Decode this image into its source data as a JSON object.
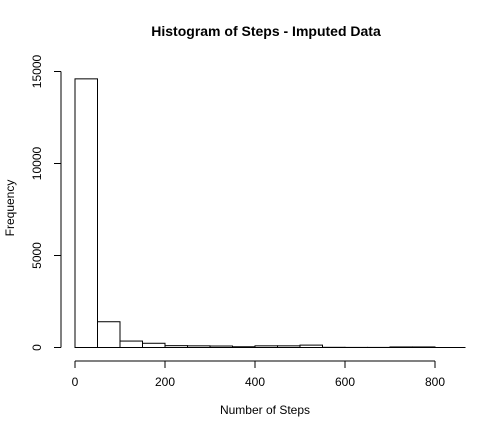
{
  "chart_data": {
    "type": "bar",
    "title": "Histogram of Steps - Imputed Data",
    "xlabel": "Number of Steps",
    "ylabel": "Frequency",
    "xlim": [
      0,
      850
    ],
    "ylim": [
      0,
      15000
    ],
    "x_ticks": [
      0,
      200,
      400,
      600,
      800
    ],
    "y_ticks": [
      0,
      5000,
      10000,
      15000
    ],
    "bin_width": 50,
    "bins": [
      {
        "start": 0,
        "end": 50,
        "count": 14600
      },
      {
        "start": 50,
        "end": 100,
        "count": 1400
      },
      {
        "start": 100,
        "end": 150,
        "count": 350
      },
      {
        "start": 150,
        "end": 200,
        "count": 230
      },
      {
        "start": 200,
        "end": 250,
        "count": 100
      },
      {
        "start": 250,
        "end": 300,
        "count": 90
      },
      {
        "start": 300,
        "end": 350,
        "count": 80
      },
      {
        "start": 350,
        "end": 400,
        "count": 40
      },
      {
        "start": 400,
        "end": 450,
        "count": 90
      },
      {
        "start": 450,
        "end": 500,
        "count": 90
      },
      {
        "start": 500,
        "end": 550,
        "count": 130
      },
      {
        "start": 550,
        "end": 600,
        "count": 10
      },
      {
        "start": 600,
        "end": 650,
        "count": 5
      },
      {
        "start": 650,
        "end": 700,
        "count": 5
      },
      {
        "start": 700,
        "end": 750,
        "count": 30
      },
      {
        "start": 750,
        "end": 800,
        "count": 30
      }
    ],
    "grid": false,
    "legend": "none"
  }
}
